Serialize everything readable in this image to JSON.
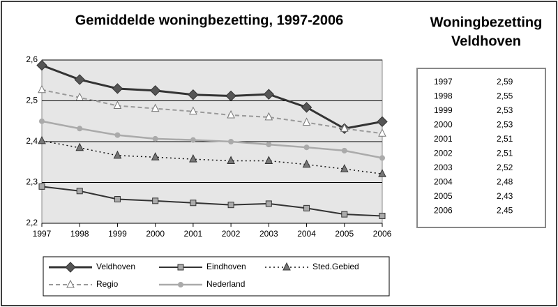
{
  "chart_data": {
    "type": "line",
    "title": "Gemiddelde woningbezetting, 1997-2006",
    "categories": [
      "1997",
      "1998",
      "1999",
      "2000",
      "2001",
      "2002",
      "2003",
      "2004",
      "2005",
      "2006"
    ],
    "series": [
      {
        "name": "Veldhoven",
        "color": "#333333",
        "width": 3,
        "dash": "solid",
        "marker": "diamond",
        "marker_fill": "#555555",
        "values": [
          2.587,
          2.552,
          2.53,
          2.525,
          2.515,
          2.512,
          2.516,
          2.484,
          2.432,
          2.449
        ]
      },
      {
        "name": "Eindhoven",
        "color": "#333333",
        "width": 2,
        "dash": "solid",
        "marker": "square",
        "marker_fill": "#aaaaaa",
        "values": [
          2.29,
          2.279,
          2.259,
          2.255,
          2.25,
          2.245,
          2.248,
          2.237,
          2.222,
          2.218
        ]
      },
      {
        "name": "Sted.Gebied",
        "color": "#111111",
        "width": 1.5,
        "dash": "dotted",
        "marker": "triangle",
        "marker_fill": "#777777",
        "values": [
          2.402,
          2.385,
          2.366,
          2.362,
          2.357,
          2.353,
          2.353,
          2.344,
          2.333,
          2.321
        ]
      },
      {
        "name": "Regio",
        "color": "#999999",
        "width": 2,
        "dash": "dashed",
        "marker": "triangle",
        "marker_fill": "#ffffff",
        "values": [
          2.527,
          2.508,
          2.488,
          2.481,
          2.474,
          2.465,
          2.46,
          2.447,
          2.432,
          2.42
        ]
      },
      {
        "name": "Nederland",
        "color": "#aaaaaa",
        "width": 2.5,
        "dash": "solid",
        "marker": "circle",
        "marker_fill": "#aaaaaa",
        "values": [
          2.45,
          2.432,
          2.416,
          2.407,
          2.404,
          2.4,
          2.393,
          2.386,
          2.378,
          2.36
        ]
      }
    ],
    "ylim": [
      2.2,
      2.6
    ],
    "yticks": [
      {
        "value": 2.2,
        "label": "2,2"
      },
      {
        "value": 2.3,
        "label": "2,3"
      },
      {
        "value": 2.4,
        "label": "2,4"
      },
      {
        "value": 2.5,
        "label": "2,5"
      },
      {
        "value": 2.6,
        "label": "2,6"
      }
    ],
    "grid": true,
    "legend": "bottom"
  },
  "table": {
    "title": [
      "Woningbezetting",
      "Veldhoven"
    ],
    "rows": [
      [
        "1997",
        "2,59"
      ],
      [
        "1998",
        "2,55"
      ],
      [
        "1999",
        "2,53"
      ],
      [
        "2000",
        "2,53"
      ],
      [
        "2001",
        "2,51"
      ],
      [
        "2002",
        "2,51"
      ],
      [
        "2003",
        "2,52"
      ],
      [
        "2004",
        "2,48"
      ],
      [
        "2005",
        "2,43"
      ],
      [
        "2006",
        "2,45"
      ]
    ]
  }
}
